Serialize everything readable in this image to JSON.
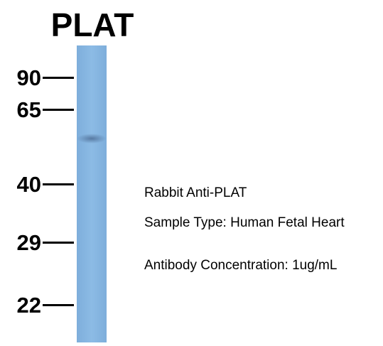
{
  "title": "PLAT",
  "markers": [
    "90",
    "65",
    "40",
    "29",
    "22"
  ],
  "annotations": [
    "Rabbit Anti-PLAT",
    "Sample Type: Human Fetal Heart",
    "Antibody Concentration: 1ug/mL"
  ]
}
